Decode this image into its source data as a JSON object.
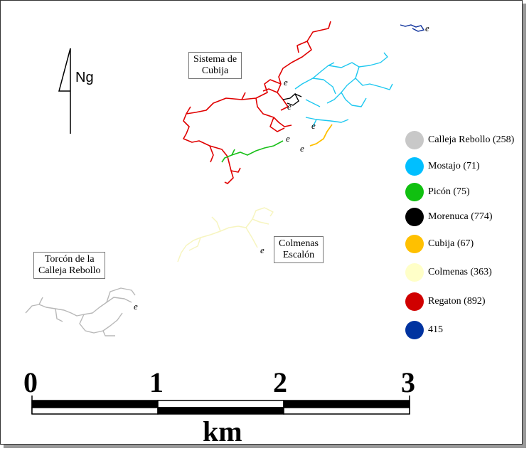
{
  "north": {
    "label": "Ng",
    "icon": "north-arrow-icon"
  },
  "labels": {
    "sistema": [
      "Sistema de",
      "Cubija"
    ],
    "colmenas": [
      "Colmenas",
      "Escalón"
    ],
    "torcon": [
      "Torcón de la",
      "Calleja Rebollo"
    ]
  },
  "entrance_marker": "e",
  "legend": [
    {
      "label": "Calleja Rebollo (258)",
      "color": "#c8c8c8"
    },
    {
      "label": "Mostajo (71)",
      "color": "#00bfff"
    },
    {
      "label": "Picón (75)",
      "color": "#10c010"
    },
    {
      "label": "Morenuca (774)",
      "color": "#000000"
    },
    {
      "label": "Cubija (67)",
      "color": "#ffc000"
    },
    {
      "label": "Colmenas (363)",
      "color": "#ffffc8"
    },
    {
      "label": "Regaton (892)",
      "color": "#d00000"
    },
    {
      "label": "415",
      "color": "#0033a0"
    }
  ],
  "scale_bar": {
    "ticks": [
      "0",
      "1",
      "2",
      "3"
    ],
    "unit": "km"
  }
}
